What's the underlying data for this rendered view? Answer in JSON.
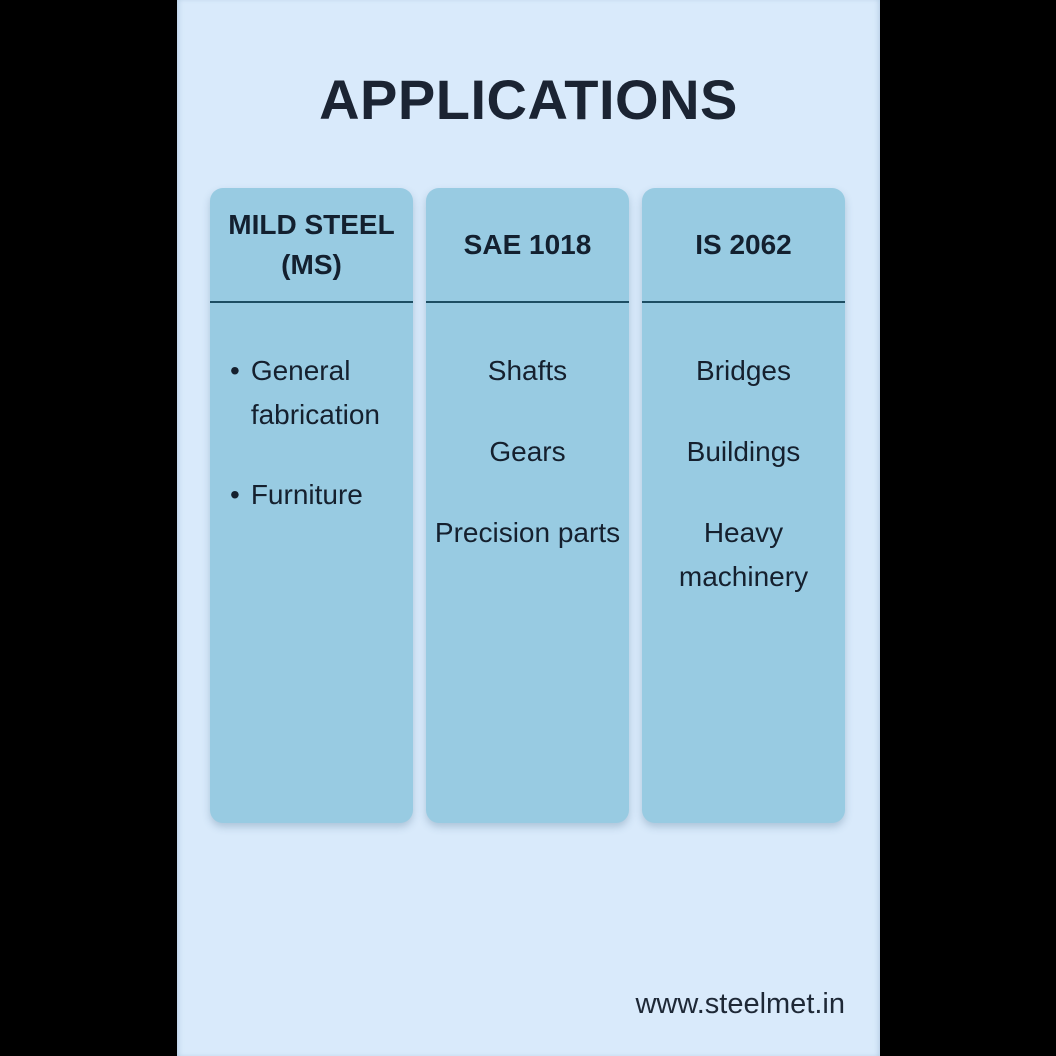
{
  "page": {
    "title": "APPLICATIONS",
    "website": "www.steelmet.in"
  },
  "bullet_glyph": "•",
  "colors": {
    "frame": "#000000",
    "page_background": "#d9eafb",
    "panel": "#98cbe2",
    "divider": "#1d4e63",
    "text": "#15202e",
    "title_text": "#1b2433"
  },
  "columns": [
    {
      "header": "MILD STEEL (MS)",
      "items": [
        "General fabrication",
        "Furniture"
      ]
    },
    {
      "header": "SAE 1018",
      "items": [
        "Shafts",
        "Gears",
        "Precision parts"
      ]
    },
    {
      "header": "IS 2062",
      "items": [
        "Bridges",
        "Buildings",
        "Heavy machinery"
      ]
    }
  ]
}
